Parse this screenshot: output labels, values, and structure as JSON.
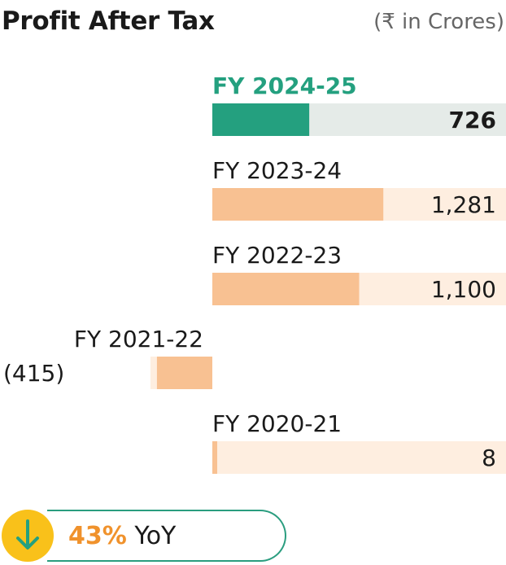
{
  "header": {
    "title": "Profit After Tax",
    "unit": "(₹ in Crores)"
  },
  "chart_data": {
    "type": "bar",
    "orientation": "horizontal",
    "title": "Profit After Tax",
    "unit": "(₹ in Crores)",
    "categories": [
      "FY 2024-25",
      "FY 2023-24",
      "FY 2022-23",
      "FY 2021-22",
      "FY 2020-21"
    ],
    "values": [
      726,
      1281,
      1100,
      -415,
      8
    ],
    "value_labels": [
      "726",
      "1,281",
      "1,100",
      "(415)",
      "8"
    ],
    "highlight_category": "FY 2024-25",
    "xlim": [
      -415,
      2200
    ],
    "colors": {
      "highlight": "#24a07f",
      "highlight_track": "#e5ebe8",
      "bar": "#f8c192",
      "track": "#feeee0",
      "highlight_label": "#24a07f"
    }
  },
  "yoy": {
    "direction": "down",
    "percent": "43%",
    "label": "YoY",
    "icon": "arrow-down-icon",
    "colors": {
      "circle": "#f9c11a",
      "arrow": "#24a07f",
      "percent": "#f0922c",
      "border": "#2a9d7f"
    }
  }
}
